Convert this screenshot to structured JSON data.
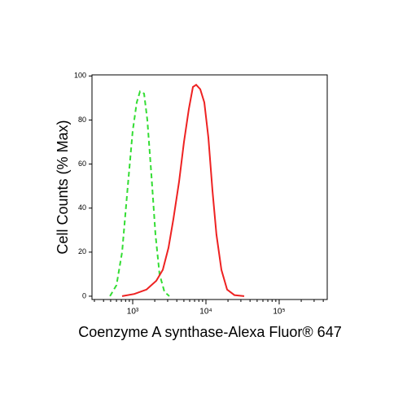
{
  "chart_data": {
    "type": "line",
    "ylabel": "Cell Counts (% Max)",
    "xlabel": "Coenzyme A synthase-Alexa Fluor® 647",
    "log_x": true,
    "xlim": [
      278,
      453000
    ],
    "xticks": [
      {
        "value": 1000,
        "label": "10³"
      },
      {
        "value": 10000,
        "label": "10⁴"
      },
      {
        "value": 100000,
        "label": "10⁵"
      }
    ],
    "ylim": [
      -1.5,
      100.5
    ],
    "yticks": [
      0,
      20,
      40,
      60,
      80,
      100
    ],
    "series": [
      {
        "color": "#33dd33",
        "dashed": true,
        "x": [
          489,
          600,
          717,
          858,
          1000,
          1136,
          1259,
          1431,
          1585,
          1802,
          2048,
          2326,
          2712,
          3162
        ],
        "values": [
          0,
          5,
          20,
          50,
          75,
          88,
          93,
          92,
          80,
          55,
          28,
          10,
          2,
          0
        ]
      },
      {
        "color": "#ee2222",
        "dashed": false,
        "x": [
          717,
          1052,
          1545,
          2100,
          2578,
          3083,
          3594,
          4296,
          5012,
          5843,
          6641,
          7356,
          8356,
          9502,
          10800,
          12270,
          13930,
          16260,
          19450,
          24490,
          33290
        ],
        "values": [
          0,
          1,
          3,
          7,
          12,
          22,
          35,
          52,
          70,
          85,
          95,
          96,
          94,
          88,
          72,
          48,
          28,
          12,
          3,
          0.5,
          0
        ]
      }
    ]
  }
}
